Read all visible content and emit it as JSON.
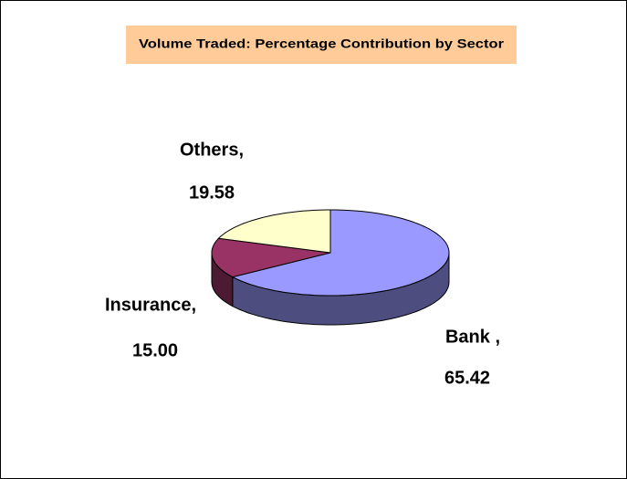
{
  "chart_data": {
    "type": "pie",
    "title": "Volume Traded: Percentage Contribution by Sector",
    "categories": [
      "Bank ,",
      "Insurance,",
      "Others,"
    ],
    "values": [
      65.42,
      15.0,
      19.58
    ],
    "value_labels": [
      "65.42",
      "15.00",
      "19.58"
    ],
    "colors": [
      "#9999ff",
      "#993366",
      "#ffffcc"
    ],
    "three_d": true
  }
}
